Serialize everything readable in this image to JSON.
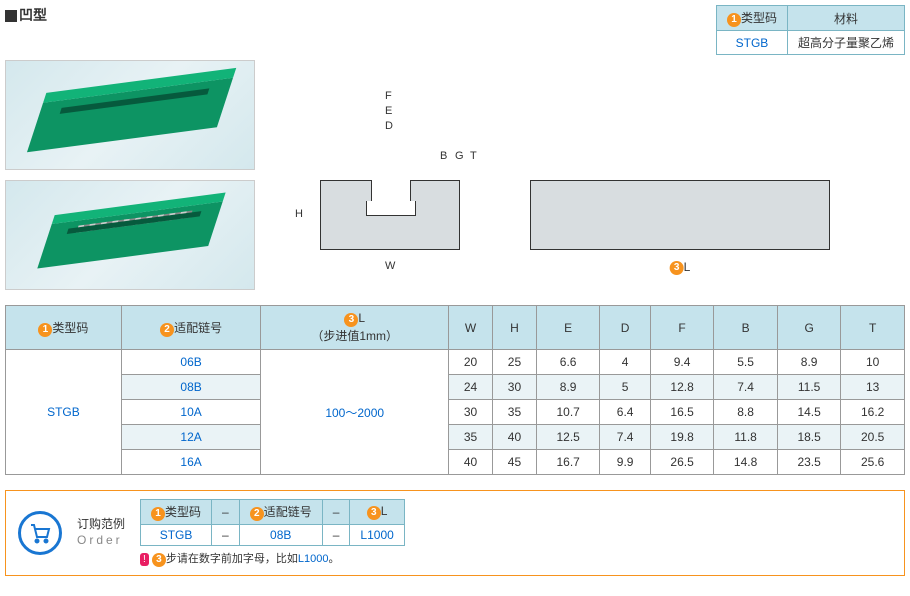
{
  "title": "凹型",
  "material_table": {
    "headers": {
      "code": "类型码",
      "material": "材料"
    },
    "code_marker": "1",
    "code": "STGB",
    "material": "超高分子量聚乙烯"
  },
  "diagram": {
    "labels": {
      "W": "W",
      "H": "H",
      "F": "F",
      "E": "E",
      "D": "D",
      "B": "B",
      "G": "G",
      "T": "T"
    },
    "length_marker": "3",
    "length_label": "L"
  },
  "table": {
    "headers": {
      "c1": {
        "marker": "1",
        "text": "类型码"
      },
      "c2": {
        "marker": "2",
        "text": "适配链号"
      },
      "c3": {
        "marker": "3",
        "text": "L",
        "sub": "（步进值1mm）"
      },
      "W": "W",
      "H": "H",
      "E": "E",
      "D": "D",
      "F": "F",
      "B": "B",
      "G": "G",
      "T": "T"
    },
    "code": "STGB",
    "length_range": "100～2000",
    "rows": [
      {
        "chain": "06B",
        "W": "20",
        "H": "25",
        "E": "6.6",
        "D": "4",
        "F": "9.4",
        "B": "5.5",
        "G": "8.9",
        "T": "10"
      },
      {
        "chain": "08B",
        "W": "24",
        "H": "30",
        "E": "8.9",
        "D": "5",
        "F": "12.8",
        "B": "7.4",
        "G": "11.5",
        "T": "13"
      },
      {
        "chain": "10A",
        "W": "30",
        "H": "35",
        "E": "10.7",
        "D": "6.4",
        "F": "16.5",
        "B": "8.8",
        "G": "14.5",
        "T": "16.2"
      },
      {
        "chain": "12A",
        "W": "35",
        "H": "40",
        "E": "12.5",
        "D": "7.4",
        "F": "19.8",
        "B": "11.8",
        "G": "18.5",
        "T": "20.5"
      },
      {
        "chain": "16A",
        "W": "40",
        "H": "45",
        "E": "16.7",
        "D": "9.9",
        "F": "26.5",
        "B": "14.8",
        "G": "23.5",
        "T": "25.6"
      }
    ]
  },
  "order": {
    "title_cn": "订购范例",
    "title_en": "Order",
    "headers": {
      "c1": {
        "marker": "1",
        "text": "类型码"
      },
      "c2": {
        "marker": "2",
        "text": "适配链号"
      },
      "c3": {
        "marker": "3",
        "text": "L"
      }
    },
    "sep": "–",
    "values": {
      "code": "STGB",
      "chain": "08B",
      "length": "L1000"
    },
    "note_badge": "!",
    "note_marker": "3",
    "note_text": "步请在数字前加字母，比如",
    "note_example": "L1000",
    "note_end": "。"
  }
}
